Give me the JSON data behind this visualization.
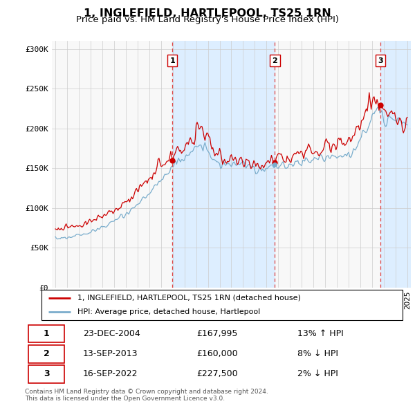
{
  "title": "1, INGLEFIELD, HARTLEPOOL, TS25 1RN",
  "subtitle": "Price paid vs. HM Land Registry's House Price Index (HPI)",
  "ylabel_ticks": [
    "£0",
    "£50K",
    "£100K",
    "£150K",
    "£200K",
    "£250K",
    "£300K"
  ],
  "ytick_vals": [
    0,
    50000,
    100000,
    150000,
    200000,
    250000,
    300000
  ],
  "ylim": [
    0,
    310000
  ],
  "xlim_start": 1994.7,
  "xlim_end": 2025.3,
  "red_color": "#cc0000",
  "blue_color": "#7aadcc",
  "vline_color": "#dd4444",
  "shade_color": "#ddeeff",
  "grid_color": "#cccccc",
  "dot_color": "#cc0000",
  "legend_entries": [
    "1, INGLEFIELD, HARTLEPOOL, TS25 1RN (detached house)",
    "HPI: Average price, detached house, Hartlepool"
  ],
  "transactions": [
    {
      "num": 1,
      "date": "23-DEC-2004",
      "price": 167995,
      "pct": "13%",
      "dir": "↑",
      "year": 2004.97
    },
    {
      "num": 2,
      "date": "13-SEP-2013",
      "price": 160000,
      "pct": "8%",
      "dir": "↓",
      "year": 2013.71
    },
    {
      "num": 3,
      "date": "16-SEP-2022",
      "price": 227500,
      "pct": "2%",
      "dir": "↓",
      "year": 2022.71
    }
  ],
  "footer": "Contains HM Land Registry data © Crown copyright and database right 2024.\nThis data is licensed under the Open Government Licence v3.0.",
  "background_chart": "#f8f8f8",
  "background_fig": "#ffffff",
  "title_fontsize": 11.5,
  "subtitle_fontsize": 9.5,
  "tick_fontsize": 8
}
